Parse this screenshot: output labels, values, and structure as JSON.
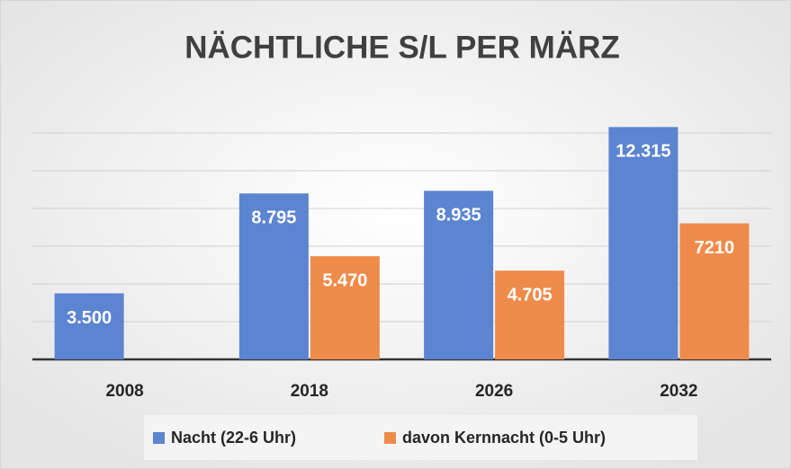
{
  "chart_data": {
    "type": "bar",
    "title": "NÄCHTLICHE S/L PER MÄRZ",
    "categories": [
      "2008",
      "2018",
      "2026",
      "2032"
    ],
    "series": [
      {
        "name": "Nacht (22-6 Uhr)",
        "color": "#5b84d1",
        "values": [
          3500,
          8795,
          8935,
          12315
        ],
        "value_labels": [
          "3.500",
          "8.795",
          "8.935",
          "12.315"
        ]
      },
      {
        "name": "davon Kernnacht (0-5 Uhr)",
        "color": "#ef8b4a",
        "values": [
          null,
          5470,
          4705,
          7210
        ],
        "value_labels": [
          null,
          "5.470",
          "4.705",
          "7210"
        ]
      }
    ],
    "ylim": [
      0,
      14000
    ],
    "yticks": [
      0,
      2000,
      4000,
      6000,
      8000,
      10000,
      12000
    ],
    "grid": true,
    "legend": "bottom"
  }
}
